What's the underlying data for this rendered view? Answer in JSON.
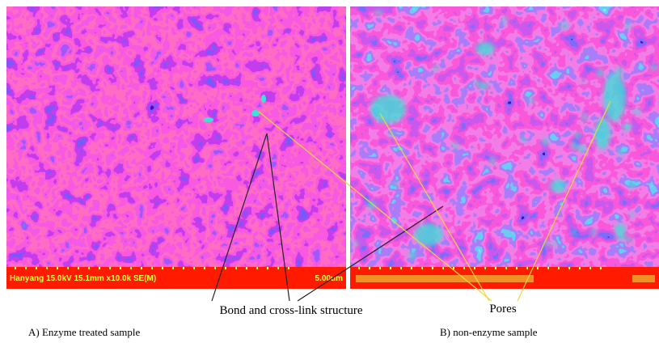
{
  "panels": [
    {
      "scale_bar": {
        "info": "Hanyang 15.0kV 15.1mm x10.0k SE(M)",
        "length": "5.00um"
      },
      "caption": "A) Enzyme treated sample"
    },
    {
      "caption": "B) non-enzyme sample"
    }
  ],
  "annotations": {
    "bond": "Bond and cross-link structure",
    "pores": "Pores"
  }
}
